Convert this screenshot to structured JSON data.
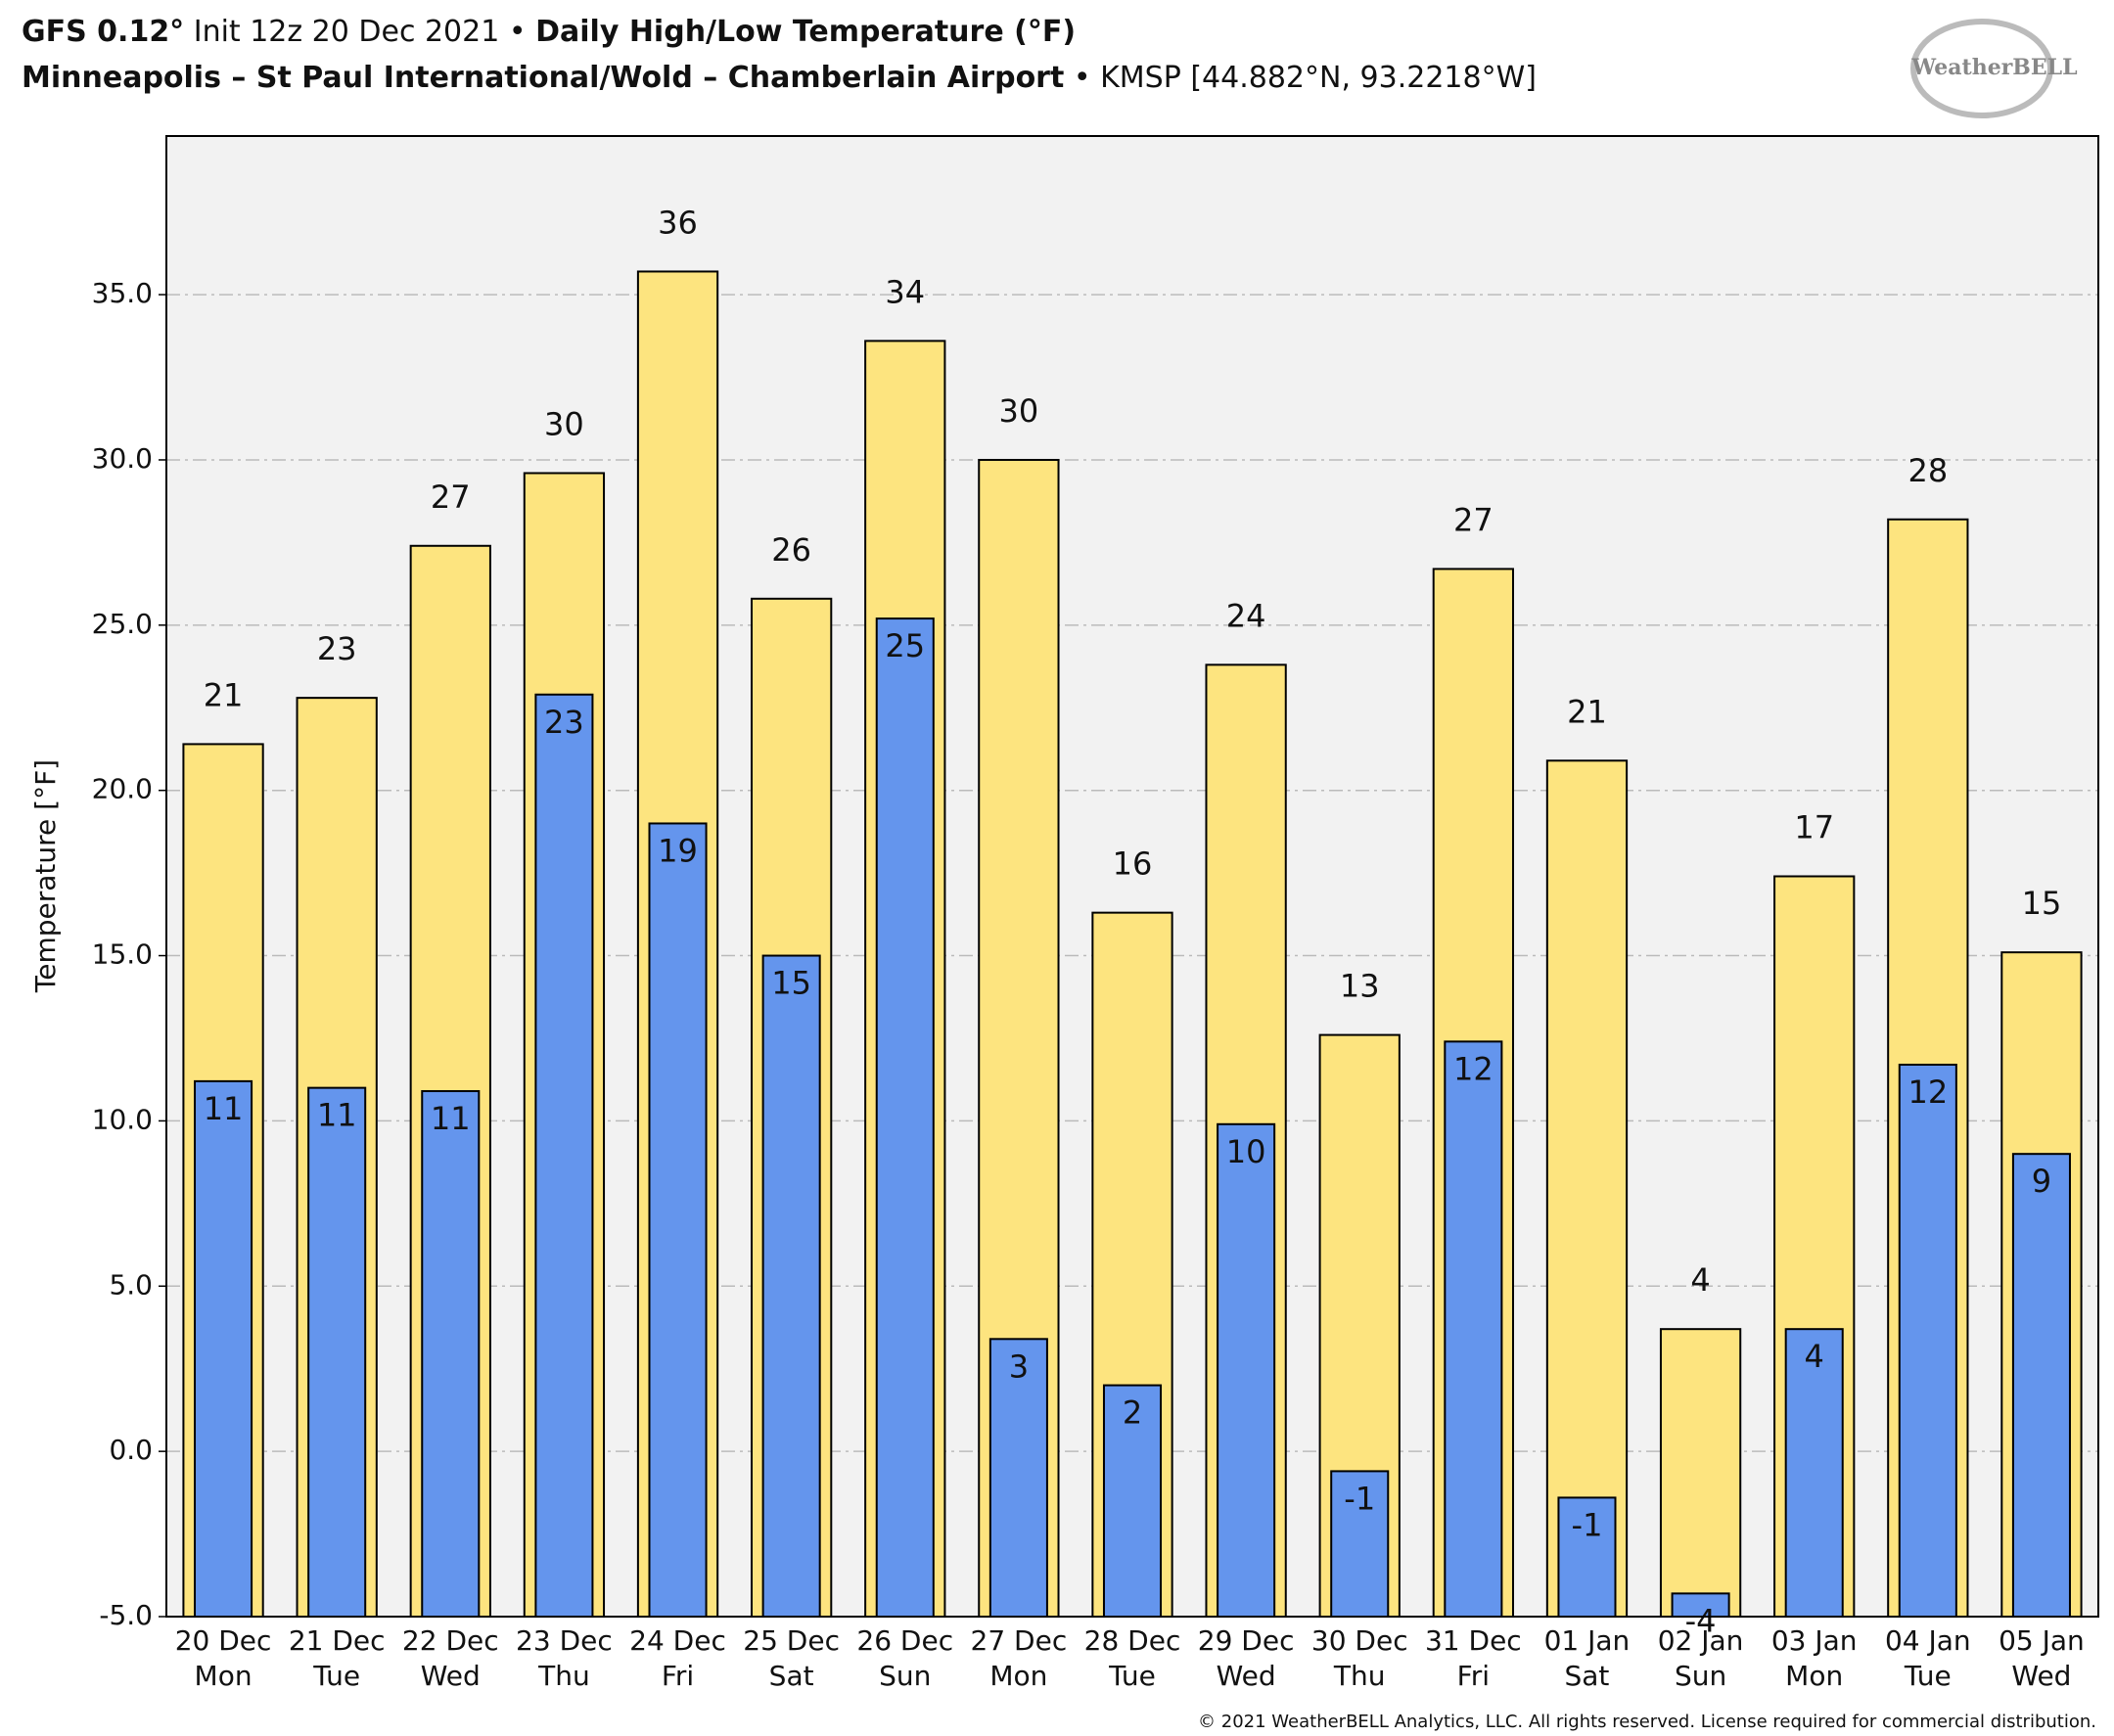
{
  "chart_data": {
    "type": "bar",
    "title_parts": [
      {
        "text": "GFS 0.12°",
        "bold": true
      },
      {
        "text": " Init 12z 20 Dec 2021",
        "bold": false
      },
      {
        "text": " • ",
        "bold": false
      },
      {
        "text": "Daily High/Low Temperature (°F)",
        "bold": true
      }
    ],
    "subtitle_parts": [
      {
        "text": "Minneapolis – St Paul International/Wold – Chamberlain Airport",
        "bold": true
      },
      {
        "text": " • ",
        "bold": false
      },
      {
        "text": "KMSP [44.882°N, 93.2218°W]",
        "bold": false
      }
    ],
    "logo": "WeatherBELL",
    "footer": "© 2021 WeatherBELL Analytics, LLC. All rights reserved. License required for commercial distribution.",
    "y_label": "Temperature [°F]",
    "categories": [
      "20 Dec",
      "21 Dec",
      "22 Dec",
      "23 Dec",
      "24 Dec",
      "25 Dec",
      "26 Dec",
      "27 Dec",
      "28 Dec",
      "29 Dec",
      "30 Dec",
      "31 Dec",
      "01 Jan",
      "02 Jan",
      "03 Jan",
      "04 Jan",
      "05 Jan"
    ],
    "weekdays": [
      "Mon",
      "Tue",
      "Wed",
      "Thu",
      "Fri",
      "Sat",
      "Sun",
      "Mon",
      "Tue",
      "Wed",
      "Thu",
      "Fri",
      "Sat",
      "Sun",
      "Mon",
      "Tue",
      "Wed"
    ],
    "series": [
      {
        "color": "#fde47f",
        "values": [
          21.4,
          22.8,
          27.4,
          29.6,
          35.7,
          25.8,
          33.6,
          30.0,
          16.3,
          23.8,
          12.6,
          26.7,
          20.9,
          3.7,
          17.4,
          28.2,
          15.1
        ],
        "value_labels": [
          "21",
          "23",
          "27",
          "30",
          "36",
          "26",
          "34",
          "30",
          "16",
          "24",
          "13",
          "27",
          "21",
          "4",
          "17",
          "28",
          "15"
        ]
      },
      {
        "color": "#6495ed",
        "values": [
          11.2,
          11.0,
          10.9,
          22.9,
          19.0,
          15.0,
          25.2,
          3.4,
          2.0,
          9.9,
          -0.6,
          12.4,
          -1.4,
          -4.3,
          3.7,
          11.7,
          9.0
        ],
        "value_labels": [
          "11",
          "11",
          "11",
          "23",
          "19",
          "15",
          "25",
          "3",
          "2",
          "10",
          "-1",
          "12",
          "-1",
          "-4",
          "4",
          "12",
          "9"
        ]
      }
    ],
    "ylim": [
      -5,
      39.8
    ],
    "yticks": [
      {
        "value": -5,
        "label": "-5.0"
      },
      {
        "value": 0,
        "label": "0.0"
      },
      {
        "value": 5,
        "label": "5.0"
      },
      {
        "value": 10,
        "label": "10.0"
      },
      {
        "value": 15,
        "label": "15.0"
      },
      {
        "value": 20,
        "label": "20.0"
      },
      {
        "value": 25,
        "label": "25.0"
      },
      {
        "value": 30,
        "label": "30.0"
      },
      {
        "value": 35,
        "label": "35.0"
      }
    ],
    "grid": true
  }
}
